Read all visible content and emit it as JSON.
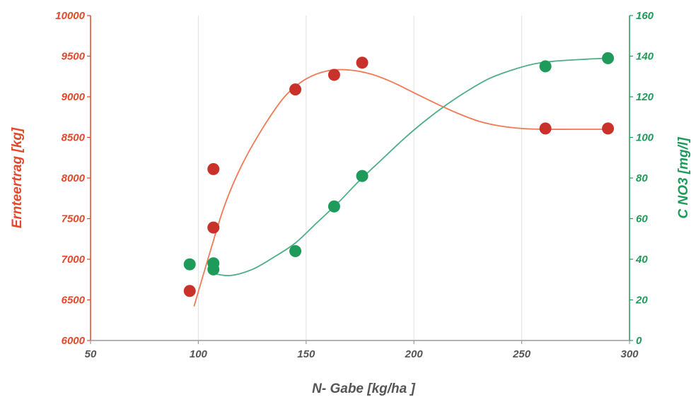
{
  "chart_data": {
    "type": "scatter",
    "xlabel": "N- Gabe [kg/ha ]",
    "x_range": [
      50,
      300
    ],
    "x_ticks": [
      "50",
      "100",
      "150",
      "200",
      "250",
      "300"
    ],
    "y_left": {
      "label": "Ernteertrag [kg]",
      "range": [
        6000,
        10000
      ],
      "ticks": [
        "6000",
        "6500",
        "7000",
        "7500",
        "8000",
        "8500",
        "9000",
        "9500",
        "10000"
      ],
      "color": "#e0492e"
    },
    "y_right": {
      "label": "C NO3 [mg/l]",
      "range": [
        0,
        160
      ],
      "ticks": [
        "0",
        "20",
        "40",
        "60",
        "80",
        "100",
        "120",
        "140",
        "160"
      ],
      "color": "#1e9a5a"
    },
    "series": [
      {
        "axis": "left",
        "color": "#c8322a",
        "line_color": "#f07a55",
        "points": [
          {
            "x": 96,
            "y": 6610
          },
          {
            "x": 107,
            "y": 7390
          },
          {
            "x": 107,
            "y": 8110
          },
          {
            "x": 145,
            "y": 9090
          },
          {
            "x": 163,
            "y": 9270
          },
          {
            "x": 176,
            "y": 9420
          },
          {
            "x": 261,
            "y": 8610
          },
          {
            "x": 290,
            "y": 8610
          }
        ],
        "trend": [
          {
            "x": 98,
            "y": 6420
          },
          {
            "x": 105,
            "y": 7050
          },
          {
            "x": 112,
            "y": 7650
          },
          {
            "x": 120,
            "y": 8150
          },
          {
            "x": 130,
            "y": 8620
          },
          {
            "x": 140,
            "y": 9000
          },
          {
            "x": 150,
            "y": 9220
          },
          {
            "x": 160,
            "y": 9320
          },
          {
            "x": 170,
            "y": 9330
          },
          {
            "x": 180,
            "y": 9280
          },
          {
            "x": 190,
            "y": 9180
          },
          {
            "x": 200,
            "y": 9050
          },
          {
            "x": 210,
            "y": 8920
          },
          {
            "x": 220,
            "y": 8800
          },
          {
            "x": 230,
            "y": 8700
          },
          {
            "x": 240,
            "y": 8640
          },
          {
            "x": 250,
            "y": 8610
          },
          {
            "x": 260,
            "y": 8600
          },
          {
            "x": 275,
            "y": 8600
          },
          {
            "x": 290,
            "y": 8600
          }
        ]
      },
      {
        "axis": "right",
        "color": "#1e9a5a",
        "line_color": "#4fae86",
        "points": [
          {
            "x": 96,
            "y": 37.5
          },
          {
            "x": 107,
            "y": 38
          },
          {
            "x": 107,
            "y": 35
          },
          {
            "x": 145,
            "y": 44
          },
          {
            "x": 163,
            "y": 66
          },
          {
            "x": 176,
            "y": 81
          },
          {
            "x": 261,
            "y": 135
          },
          {
            "x": 290,
            "y": 139
          }
        ],
        "trend": [
          {
            "x": 107,
            "y": 33
          },
          {
            "x": 115,
            "y": 32
          },
          {
            "x": 125,
            "y": 35
          },
          {
            "x": 135,
            "y": 41
          },
          {
            "x": 145,
            "y": 48
          },
          {
            "x": 155,
            "y": 58
          },
          {
            "x": 165,
            "y": 68
          },
          {
            "x": 175,
            "y": 79
          },
          {
            "x": 185,
            "y": 89
          },
          {
            "x": 195,
            "y": 99
          },
          {
            "x": 205,
            "y": 108
          },
          {
            "x": 215,
            "y": 116
          },
          {
            "x": 225,
            "y": 123
          },
          {
            "x": 235,
            "y": 129
          },
          {
            "x": 245,
            "y": 133
          },
          {
            "x": 255,
            "y": 136
          },
          {
            "x": 265,
            "y": 137.5
          },
          {
            "x": 280,
            "y": 138.5
          },
          {
            "x": 290,
            "y": 139
          }
        ]
      }
    ]
  }
}
